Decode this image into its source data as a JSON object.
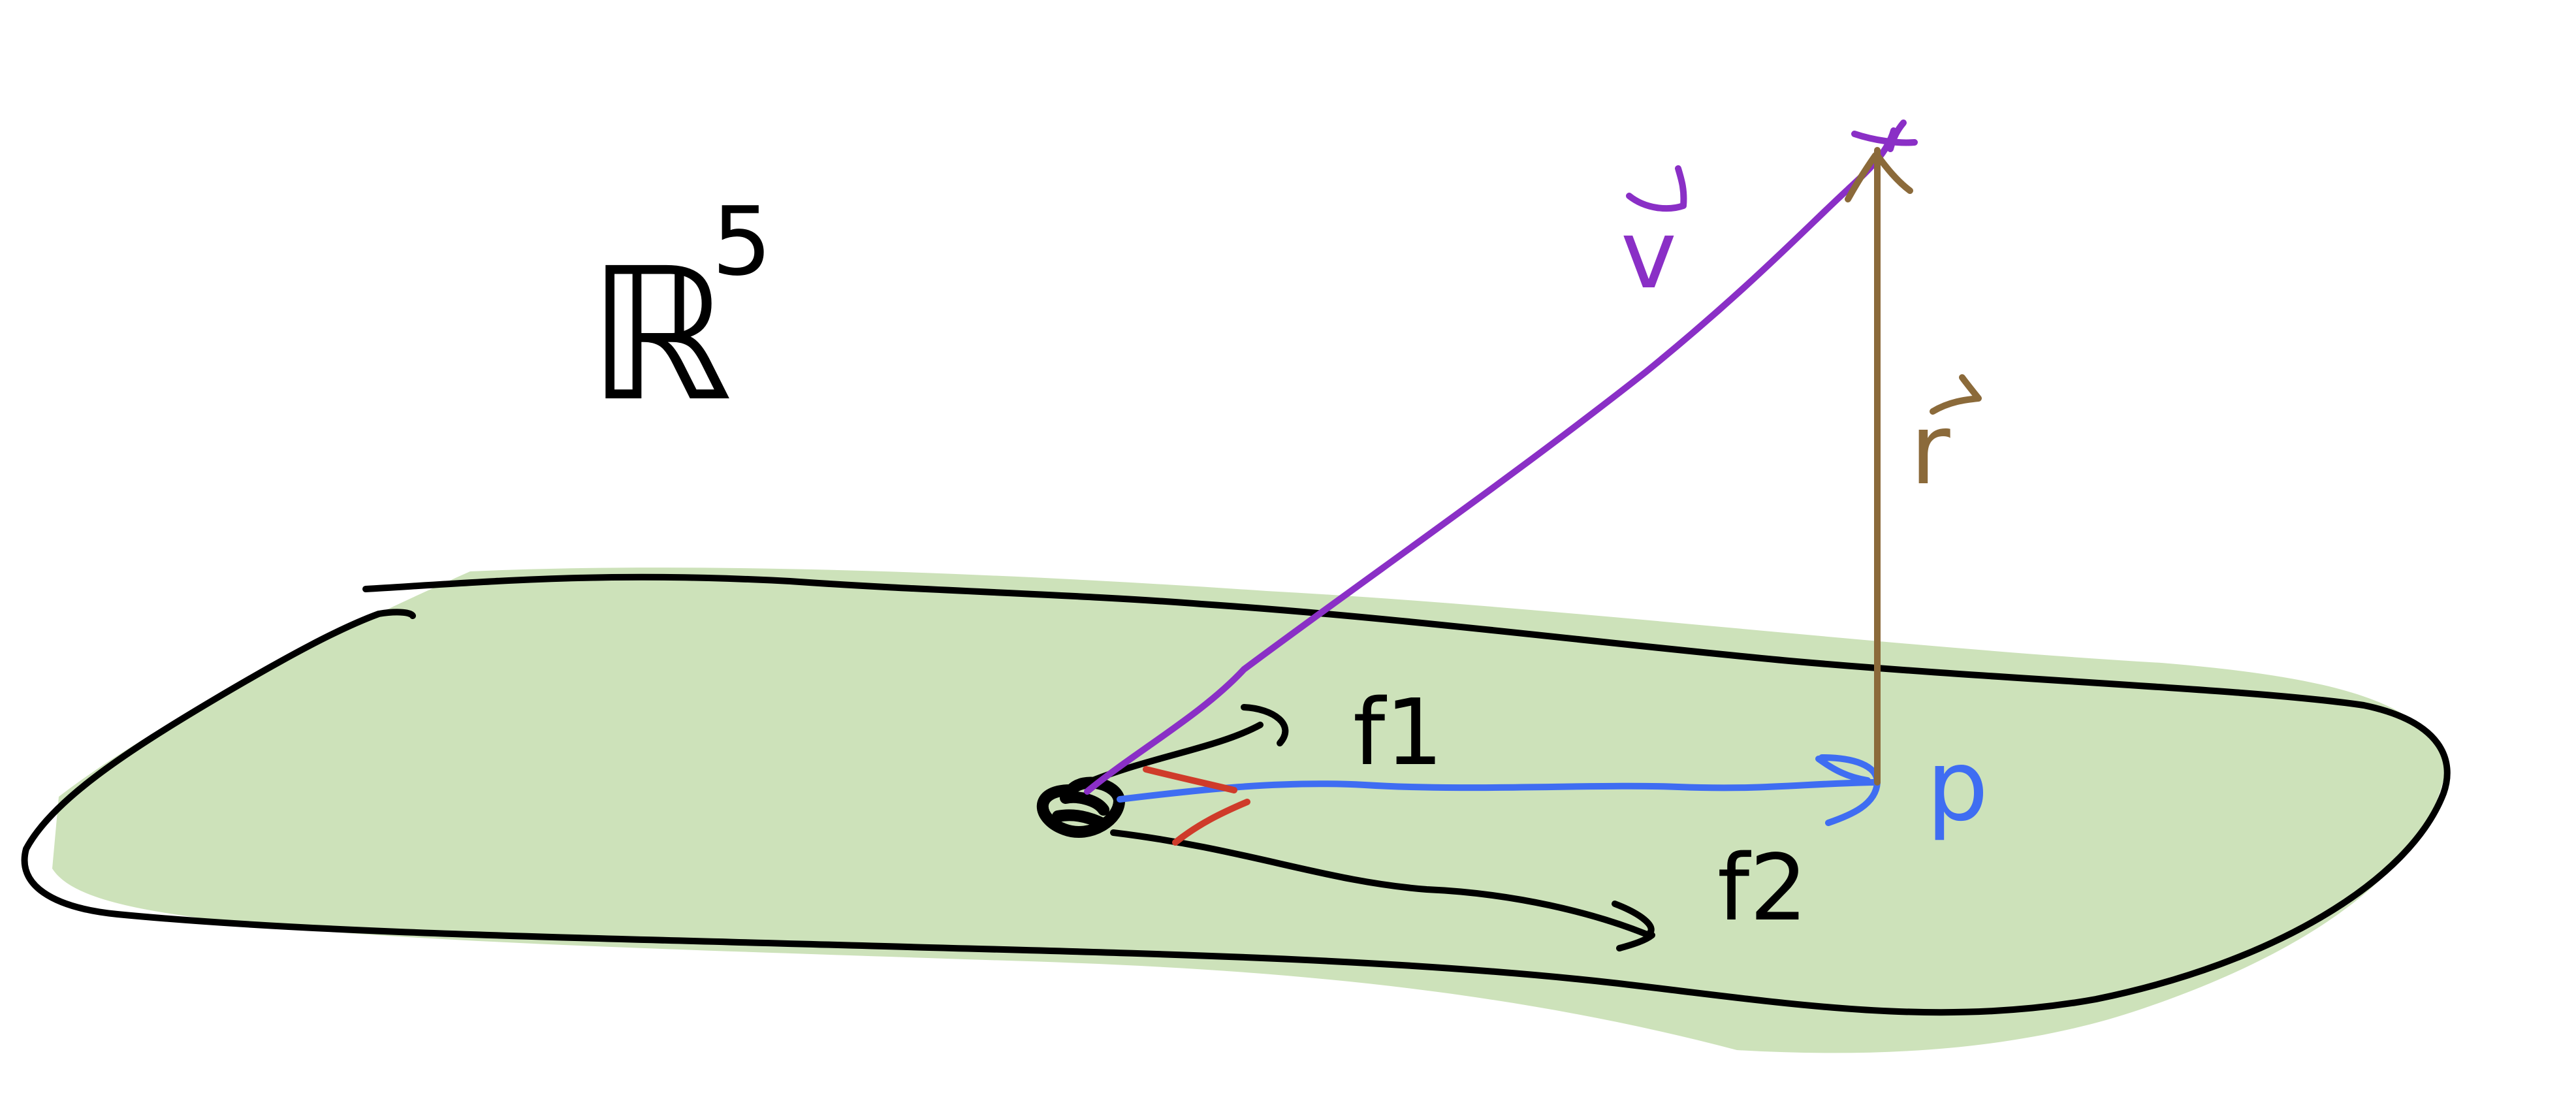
{
  "space_label": {
    "base": "ℝ",
    "superscript": "5"
  },
  "labels": {
    "v": "v",
    "r": "r",
    "f1": "f1",
    "f2": "f2",
    "p": "p"
  },
  "colors": {
    "plane_fill": "#cde2ba",
    "outline": "#000000",
    "vector_v": "#8a2fc6",
    "vector_r": "#8b6a3a",
    "projection_p": "#3f6df2",
    "angle_marks": "#cf3b2a",
    "basis_vectors": "#000000"
  }
}
